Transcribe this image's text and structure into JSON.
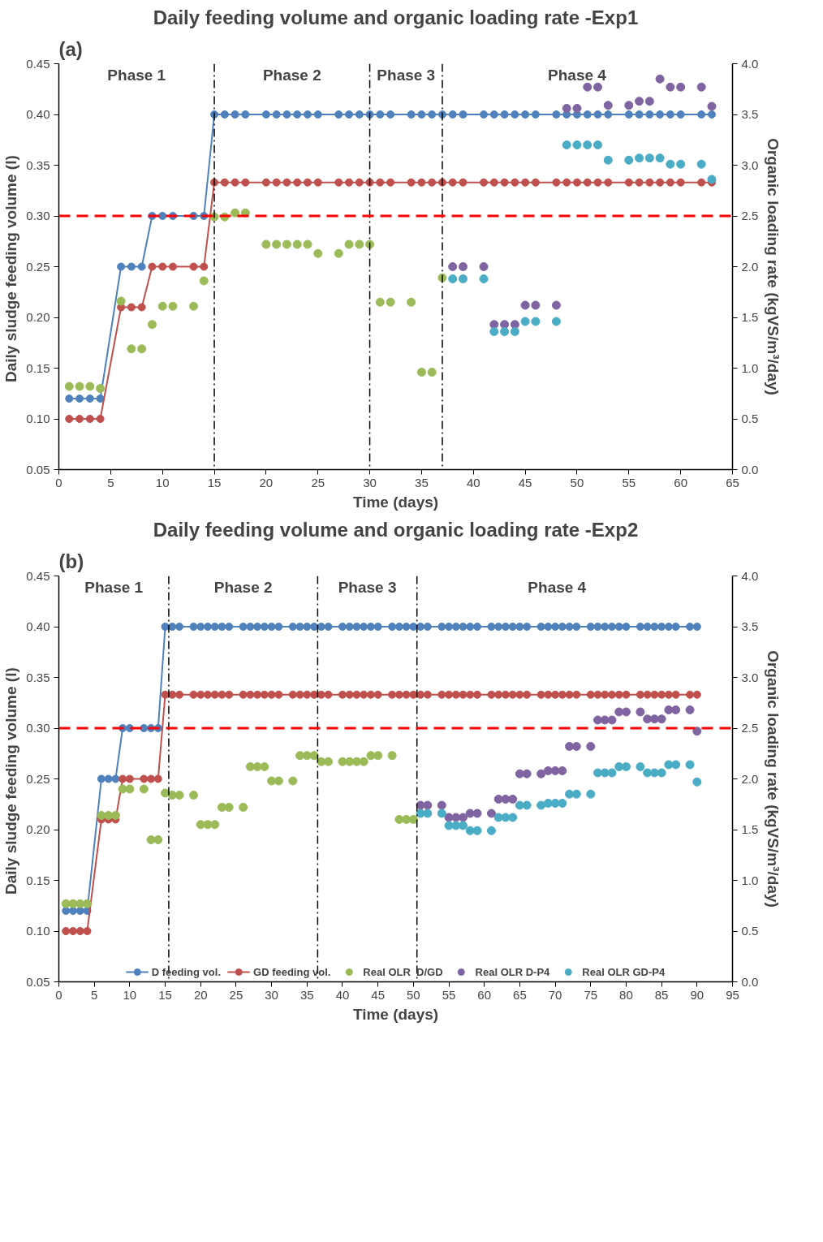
{
  "chart_data": [
    {
      "type": "line",
      "title": "Daily feeding volume and organic loading rate -Exp1",
      "xlabel": "Time (days)",
      "ylabel": "Daily  sludge feeding volume (l)",
      "y2label": "Organic loading rate (kgVS/m³/day)",
      "xlim": [
        0,
        65
      ],
      "xticks": [
        0,
        5,
        10,
        15,
        20,
        25,
        30,
        35,
        40,
        45,
        50,
        55,
        60,
        65
      ],
      "ylim": [
        0.05,
        0.45
      ],
      "yticks": [
        {
          "value": 0.05,
          "label": "0.05"
        },
        {
          "value": 0.1,
          "label": "0.10"
        },
        {
          "value": 0.15,
          "label": "0.15"
        },
        {
          "value": 0.2,
          "label": "0.20"
        },
        {
          "value": 0.25,
          "label": "0.25"
        },
        {
          "value": 0.3,
          "label": "0.30"
        },
        {
          "value": 0.35,
          "label": "0.35"
        },
        {
          "value": 0.4,
          "label": "0.40"
        },
        {
          "value": 0.45,
          "label": "0.45"
        }
      ],
      "y2lim": [
        0,
        4
      ],
      "y2ticks": [
        {
          "value": 0,
          "label": "0.0"
        },
        {
          "value": 0.5,
          "label": "0.5"
        },
        {
          "value": 1,
          "label": "1.0"
        },
        {
          "value": 1.5,
          "label": "1.5"
        },
        {
          "value": 2,
          "label": "2.0"
        },
        {
          "value": 2.5,
          "label": "2.5"
        },
        {
          "value": 3,
          "label": "3.0"
        },
        {
          "value": 3.5,
          "label": "3.5"
        },
        {
          "value": 4,
          "label": "4.0"
        }
      ],
      "grid": false,
      "legend": false,
      "marker": "circle",
      "series": [
        {
          "color": "#4f81bd",
          "x": [
            1,
            2,
            3,
            4,
            6,
            7,
            8,
            9,
            10,
            11,
            13,
            14,
            15,
            16,
            17,
            18,
            20,
            21,
            22,
            23,
            24,
            25,
            27,
            28,
            29,
            30,
            31,
            32,
            34,
            35,
            36,
            37,
            38,
            39,
            41,
            42,
            43,
            44,
            45,
            46,
            48,
            49,
            50,
            51,
            52,
            53,
            55,
            56,
            57,
            58,
            59,
            60,
            62,
            63
          ],
          "values": [
            0.12,
            0.12,
            0.12,
            0.12,
            0.25,
            0.25,
            0.25,
            0.3,
            0.3,
            0.3,
            0.3,
            0.3,
            0.4,
            0.4,
            0.4,
            0.4,
            0.4,
            0.4,
            0.4,
            0.4,
            0.4,
            0.4,
            0.4,
            0.4,
            0.4,
            0.4,
            0.4,
            0.4,
            0.4,
            0.4,
            0.4,
            0.4,
            0.4,
            0.4,
            0.4,
            0.4,
            0.4,
            0.4,
            0.4,
            0.4,
            0.4,
            0.4,
            0.4,
            0.4,
            0.4,
            0.4,
            0.4,
            0.4,
            0.4,
            0.4,
            0.4,
            0.4,
            0.4,
            0.4
          ]
        },
        {
          "color": "#c0504d",
          "x": [
            1,
            2,
            3,
            4,
            6,
            7,
            8,
            9,
            10,
            11,
            13,
            14,
            15,
            16,
            17,
            18,
            20,
            21,
            22,
            23,
            24,
            25,
            27,
            28,
            29,
            30,
            31,
            32,
            34,
            35,
            36,
            37,
            38,
            39,
            41,
            42,
            43,
            44,
            45,
            46,
            48,
            49,
            50,
            51,
            52,
            53,
            55,
            56,
            57,
            58,
            59,
            60,
            62,
            63
          ],
          "values": [
            0.1,
            0.1,
            0.1,
            0.1,
            0.21,
            0.21,
            0.21,
            0.25,
            0.25,
            0.25,
            0.25,
            0.25,
            0.333,
            0.333,
            0.333,
            0.333,
            0.333,
            0.333,
            0.333,
            0.333,
            0.333,
            0.333,
            0.333,
            0.333,
            0.333,
            0.333,
            0.333,
            0.333,
            0.333,
            0.333,
            0.333,
            0.333,
            0.333,
            0.333,
            0.333,
            0.333,
            0.333,
            0.333,
            0.333,
            0.333,
            0.333,
            0.333,
            0.333,
            0.333,
            0.333,
            0.333,
            0.333,
            0.333,
            0.333,
            0.333,
            0.333,
            0.333,
            0.333,
            0.333
          ]
        },
        {
          "type": "scatter",
          "axis": "y2",
          "color": "#9bbb59",
          "x": [
            1,
            2,
            3,
            4,
            6,
            7,
            8,
            9,
            10,
            11,
            13,
            14,
            15,
            16,
            17,
            18,
            20,
            21,
            22,
            23,
            24,
            25,
            27,
            28,
            29,
            30,
            31,
            32,
            34,
            35,
            36,
            37
          ],
          "values": [
            0.82,
            0.82,
            0.82,
            0.8,
            1.66,
            1.19,
            1.19,
            1.43,
            1.61,
            1.61,
            1.61,
            1.86,
            2.49,
            2.49,
            2.53,
            2.53,
            2.22,
            2.22,
            2.22,
            2.22,
            2.22,
            2.13,
            2.13,
            2.22,
            2.22,
            2.22,
            1.65,
            1.65,
            1.65,
            0.96,
            0.96,
            1.89
          ]
        },
        {
          "type": "scatter",
          "axis": "y2",
          "color": "#8064a2",
          "x": [
            38,
            39,
            41,
            42,
            43,
            44,
            45,
            46,
            48,
            49,
            50,
            51,
            52,
            53,
            55,
            56,
            57,
            58,
            59,
            60,
            62,
            63
          ],
          "values": [
            2.0,
            2.0,
            2.0,
            1.43,
            1.43,
            1.43,
            1.62,
            1.62,
            1.62,
            3.56,
            3.56,
            3.77,
            3.77,
            3.59,
            3.59,
            3.63,
            3.63,
            3.85,
            3.77,
            3.77,
            3.77,
            3.58
          ]
        },
        {
          "type": "scatter",
          "axis": "y2",
          "color": "#4bacc6",
          "x": [
            38,
            39,
            41,
            42,
            43,
            44,
            45,
            46,
            48,
            49,
            50,
            51,
            52,
            53,
            55,
            56,
            57,
            58,
            59,
            60,
            62,
            63
          ],
          "values": [
            1.88,
            1.88,
            1.88,
            1.36,
            1.36,
            1.36,
            1.46,
            1.46,
            1.46,
            3.2,
            3.2,
            3.2,
            3.2,
            3.05,
            3.05,
            3.07,
            3.07,
            3.07,
            3.01,
            3.01,
            3.01,
            2.86
          ]
        }
      ],
      "ref_lines": [
        {
          "axis": "x",
          "value": 15,
          "color": "#000000",
          "line_style": "dashdot"
        },
        {
          "axis": "x",
          "value": 30,
          "color": "#000000",
          "line_style": "dashdot"
        },
        {
          "axis": "x",
          "value": 37,
          "color": "#000000",
          "line_style": "dashdot"
        },
        {
          "axis": "y2",
          "value": 2.5,
          "color": "#ff0000",
          "line_style": "dashed"
        }
      ],
      "annotations": [
        "(a)",
        "Phase 1",
        "Phase 2",
        "Phase 3",
        "Phase 4"
      ]
    },
    {
      "type": "line",
      "title": "Daily feeding volume and organic loading rate -Exp2",
      "xlabel": "Time (days)",
      "ylabel": "Daily  sludge feeding volume (l)",
      "y2label": "Organic loading rate (kgVS/m³/day)",
      "xlim": [
        0,
        95
      ],
      "xticks": [
        0,
        5,
        10,
        15,
        20,
        25,
        30,
        35,
        40,
        45,
        50,
        55,
        60,
        65,
        70,
        75,
        80,
        85,
        90,
        95
      ],
      "ylim": [
        0.05,
        0.45
      ],
      "yticks": [
        {
          "value": 0.05,
          "label": "0.05"
        },
        {
          "value": 0.1,
          "label": "0.10"
        },
        {
          "value": 0.15,
          "label": "0.15"
        },
        {
          "value": 0.2,
          "label": "0.20"
        },
        {
          "value": 0.25,
          "label": "0.25"
        },
        {
          "value": 0.3,
          "label": "0.30"
        },
        {
          "value": 0.35,
          "label": "0.35"
        },
        {
          "value": 0.4,
          "label": "0.40"
        },
        {
          "value": 0.45,
          "label": "0.45"
        }
      ],
      "y2lim": [
        0,
        4
      ],
      "y2ticks": [
        {
          "value": 0,
          "label": "0.0"
        },
        {
          "value": 0.5,
          "label": "0.5"
        },
        {
          "value": 1,
          "label": "1.0"
        },
        {
          "value": 1.5,
          "label": "1.5"
        },
        {
          "value": 2,
          "label": "2.0"
        },
        {
          "value": 2.5,
          "label": "2.5"
        },
        {
          "value": 3,
          "label": "3.0"
        },
        {
          "value": 3.5,
          "label": "3.5"
        },
        {
          "value": 4,
          "label": "4.0"
        }
      ],
      "grid": false,
      "legend": "bottom",
      "marker": "circle",
      "series": [
        {
          "name": "D feeding vol.",
          "color": "#4f81bd",
          "x": [
            1,
            2,
            3,
            4,
            6,
            7,
            8,
            9,
            10,
            12,
            13,
            14,
            15,
            16,
            17,
            19,
            20,
            21,
            22,
            23,
            24,
            26,
            27,
            28,
            29,
            30,
            31,
            33,
            34,
            35,
            36,
            37,
            38,
            40,
            41,
            42,
            43,
            44,
            45,
            47,
            48,
            49,
            50,
            51,
            52,
            54,
            55,
            56,
            57,
            58,
            59,
            61,
            62,
            63,
            64,
            65,
            66,
            68,
            69,
            70,
            71,
            72,
            73,
            75,
            76,
            77,
            78,
            79,
            80,
            82,
            83,
            84,
            85,
            86,
            87,
            89,
            90
          ],
          "values": [
            0.12,
            0.12,
            0.12,
            0.12,
            0.25,
            0.25,
            0.25,
            0.3,
            0.3,
            0.3,
            0.3,
            0.3,
            0.4,
            0.4,
            0.4,
            0.4,
            0.4,
            0.4,
            0.4,
            0.4,
            0.4,
            0.4,
            0.4,
            0.4,
            0.4,
            0.4,
            0.4,
            0.4,
            0.4,
            0.4,
            0.4,
            0.4,
            0.4,
            0.4,
            0.4,
            0.4,
            0.4,
            0.4,
            0.4,
            0.4,
            0.4,
            0.4,
            0.4,
            0.4,
            0.4,
            0.4,
            0.4,
            0.4,
            0.4,
            0.4,
            0.4,
            0.4,
            0.4,
            0.4,
            0.4,
            0.4,
            0.4,
            0.4,
            0.4,
            0.4,
            0.4,
            0.4,
            0.4,
            0.4,
            0.4,
            0.4,
            0.4,
            0.4,
            0.4,
            0.4,
            0.4,
            0.4,
            0.4,
            0.4,
            0.4,
            0.4,
            0.4
          ]
        },
        {
          "name": "GD feeding vol.",
          "color": "#c0504d",
          "x": [
            1,
            2,
            3,
            4,
            6,
            7,
            8,
            9,
            10,
            12,
            13,
            14,
            15,
            16,
            17,
            19,
            20,
            21,
            22,
            23,
            24,
            26,
            27,
            28,
            29,
            30,
            31,
            33,
            34,
            35,
            36,
            37,
            38,
            40,
            41,
            42,
            43,
            44,
            45,
            47,
            48,
            49,
            50,
            51,
            52,
            54,
            55,
            56,
            57,
            58,
            59,
            61,
            62,
            63,
            64,
            65,
            66,
            68,
            69,
            70,
            71,
            72,
            73,
            75,
            76,
            77,
            78,
            79,
            80,
            82,
            83,
            84,
            85,
            86,
            87,
            89,
            90
          ],
          "values": [
            0.1,
            0.1,
            0.1,
            0.1,
            0.21,
            0.21,
            0.21,
            0.25,
            0.25,
            0.25,
            0.25,
            0.25,
            0.333,
            0.333,
            0.333,
            0.333,
            0.333,
            0.333,
            0.333,
            0.333,
            0.333,
            0.333,
            0.333,
            0.333,
            0.333,
            0.333,
            0.333,
            0.333,
            0.333,
            0.333,
            0.333,
            0.333,
            0.333,
            0.333,
            0.333,
            0.333,
            0.333,
            0.333,
            0.333,
            0.333,
            0.333,
            0.333,
            0.333,
            0.333,
            0.333,
            0.333,
            0.333,
            0.333,
            0.333,
            0.333,
            0.333,
            0.333,
            0.333,
            0.333,
            0.333,
            0.333,
            0.333,
            0.333,
            0.333,
            0.333,
            0.333,
            0.333,
            0.333,
            0.333,
            0.333,
            0.333,
            0.333,
            0.333,
            0.333,
            0.333,
            0.333,
            0.333,
            0.333,
            0.333,
            0.333,
            0.333,
            0.333
          ]
        },
        {
          "type": "scatter",
          "axis": "y2",
          "name": "Real OLR  D/GD",
          "color": "#9bbb59",
          "x": [
            1,
            2,
            3,
            4,
            6,
            7,
            8,
            9,
            10,
            12,
            13,
            14,
            15,
            16,
            17,
            19,
            20,
            21,
            22,
            23,
            24,
            26,
            27,
            28,
            29,
            30,
            31,
            33,
            34,
            35,
            36,
            37,
            38,
            40,
            41,
            42,
            43,
            44,
            45,
            47,
            48,
            49,
            50
          ],
          "values": [
            0.77,
            0.77,
            0.77,
            0.77,
            1.64,
            1.64,
            1.64,
            1.9,
            1.9,
            1.9,
            1.4,
            1.4,
            1.86,
            1.84,
            1.84,
            1.84,
            1.55,
            1.55,
            1.55,
            1.72,
            1.72,
            1.72,
            2.12,
            2.12,
            2.12,
            1.98,
            1.98,
            1.98,
            2.23,
            2.23,
            2.23,
            2.17,
            2.17,
            2.17,
            2.17,
            2.17,
            2.17,
            2.23,
            2.23,
            2.23,
            1.6,
            1.6,
            1.6
          ]
        },
        {
          "type": "scatter",
          "axis": "y2",
          "name": "Real OLR D-P4",
          "color": "#8064a2",
          "x": [
            51,
            52,
            54,
            55,
            56,
            57,
            58,
            59,
            61,
            62,
            63,
            64,
            65,
            66,
            68,
            69,
            70,
            71,
            72,
            73,
            75,
            76,
            77,
            78,
            79,
            80,
            82,
            83,
            84,
            85,
            86,
            87,
            89,
            90
          ],
          "values": [
            1.74,
            1.74,
            1.74,
            1.62,
            1.62,
            1.62,
            1.66,
            1.66,
            1.66,
            1.8,
            1.8,
            1.8,
            2.05,
            2.05,
            2.05,
            2.08,
            2.08,
            2.08,
            2.32,
            2.32,
            2.32,
            2.58,
            2.58,
            2.58,
            2.66,
            2.66,
            2.66,
            2.59,
            2.59,
            2.59,
            2.68,
            2.68,
            2.68,
            2.47
          ]
        },
        {
          "type": "scatter",
          "axis": "y2",
          "name": "Real OLR GD-P4",
          "color": "#4bacc6",
          "x": [
            51,
            52,
            54,
            55,
            56,
            57,
            58,
            59,
            61,
            62,
            63,
            64,
            65,
            66,
            68,
            69,
            70,
            71,
            72,
            73,
            75,
            76,
            77,
            78,
            79,
            80,
            82,
            83,
            84,
            85,
            86,
            87,
            89,
            90
          ],
          "values": [
            1.66,
            1.66,
            1.66,
            1.54,
            1.54,
            1.54,
            1.49,
            1.49,
            1.49,
            1.62,
            1.62,
            1.62,
            1.74,
            1.74,
            1.74,
            1.76,
            1.76,
            1.76,
            1.85,
            1.85,
            1.85,
            2.06,
            2.06,
            2.06,
            2.12,
            2.12,
            2.12,
            2.06,
            2.06,
            2.06,
            2.14,
            2.14,
            2.14,
            1.97
          ]
        }
      ],
      "ref_lines": [
        {
          "axis": "x",
          "value": 15.5,
          "color": "#000000",
          "line_style": "dashdot"
        },
        {
          "axis": "x",
          "value": 36.5,
          "color": "#000000",
          "line_style": "dashdot"
        },
        {
          "axis": "x",
          "value": 50.5,
          "color": "#000000",
          "line_style": "dashdot"
        },
        {
          "axis": "y2",
          "value": 2.5,
          "color": "#ff0000",
          "line_style": "dashed"
        }
      ],
      "annotations": [
        "(b)",
        "Phase 1",
        "Phase 2",
        "Phase 3",
        "Phase 4"
      ]
    }
  ]
}
